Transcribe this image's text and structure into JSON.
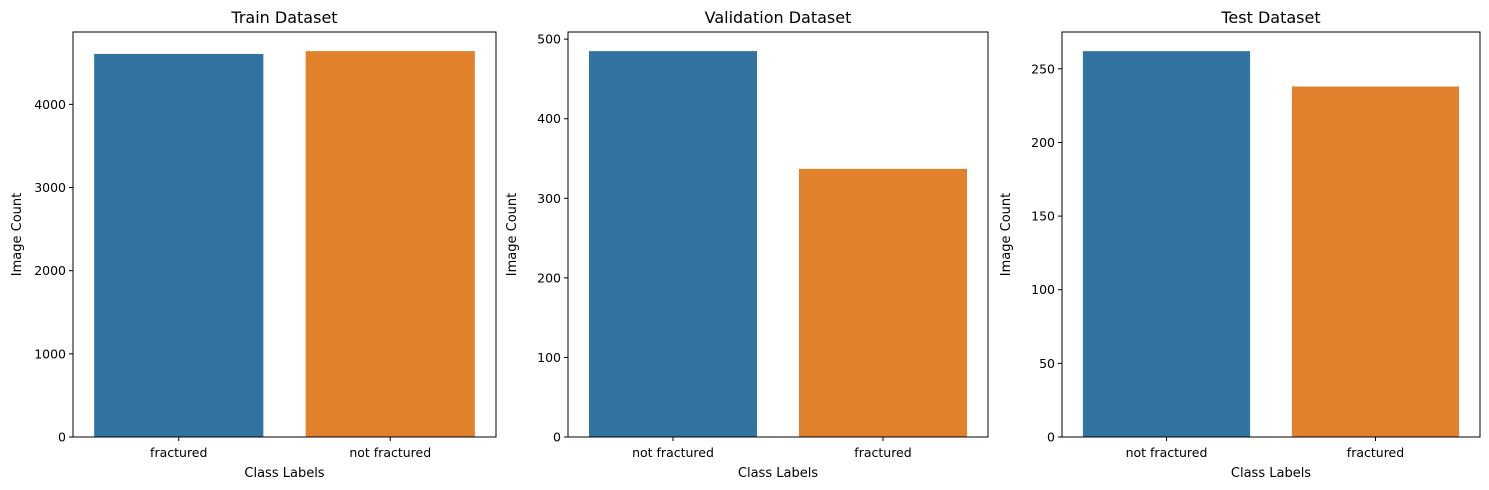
{
  "chart_data": [
    {
      "type": "bar",
      "title": "Train Dataset",
      "xlabel": "Class Labels",
      "ylabel": "Image Count",
      "categories": [
        "fractured",
        "not fractured"
      ],
      "values": [
        4606,
        4640
      ],
      "colors": [
        "#3274a1",
        "#e1812c"
      ],
      "ylim": [
        0,
        4870
      ],
      "yticks": [
        0,
        1000,
        2000,
        3000,
        4000
      ],
      "grid": false
    },
    {
      "type": "bar",
      "title": "Validation Dataset",
      "xlabel": "Class Labels",
      "ylabel": "Image Count",
      "categories": [
        "not fractured",
        "fractured"
      ],
      "values": [
        485,
        337
      ],
      "colors": [
        "#3274a1",
        "#e1812c"
      ],
      "ylim": [
        0,
        509
      ],
      "yticks": [
        0,
        100,
        200,
        300,
        400,
        500
      ],
      "grid": false
    },
    {
      "type": "bar",
      "title": "Test Dataset",
      "xlabel": "Class Labels",
      "ylabel": "Image Count",
      "categories": [
        "not fractured",
        "fractured"
      ],
      "values": [
        262,
        238
      ],
      "colors": [
        "#3274a1",
        "#e1812c"
      ],
      "ylim": [
        0,
        275
      ],
      "yticks": [
        0,
        50,
        100,
        150,
        200,
        250
      ],
      "grid": false
    }
  ]
}
